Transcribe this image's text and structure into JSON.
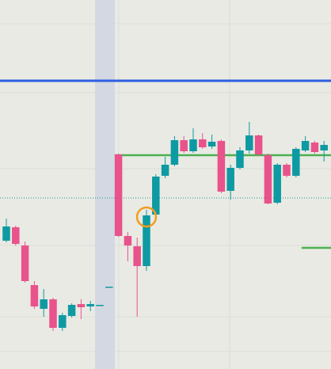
{
  "chart_data": {
    "type": "candlestick",
    "up_color": "#0e9aa2",
    "down_color": "#e8538b",
    "ylim": [
      0,
      466
    ],
    "categories": [
      null,
      null,
      null,
      null,
      null,
      null,
      null,
      null,
      null,
      null,
      null,
      null,
      null,
      null,
      null,
      null,
      null,
      null,
      null,
      null,
      null,
      null,
      null,
      null,
      null,
      null,
      null,
      null,
      null,
      null,
      null,
      null,
      null,
      null,
      null
    ],
    "open": [
      162,
      179,
      156,
      106,
      76,
      88,
      52,
      67,
      82,
      79,
      81,
      104,
      271,
      168,
      155,
      130,
      195,
      244,
      258,
      289,
      275,
      290,
      281,
      288,
      225,
      254,
      276,
      295,
      270,
      210,
      258,
      244,
      276,
      286,
      276
    ],
    "high": [
      190,
      181,
      161,
      111,
      101,
      90,
      71,
      83,
      88,
      86,
      81,
      104,
      272,
      173,
      166,
      201,
      246,
      268,
      294,
      294,
      304,
      298,
      296,
      290,
      258,
      280,
      312,
      296,
      272,
      260,
      260,
      280,
      294,
      288,
      288
    ],
    "low": [
      160,
      156,
      109,
      76,
      66,
      48,
      48,
      65,
      63,
      73,
      81,
      104,
      167,
      136,
      66,
      124,
      192,
      241,
      256,
      273,
      273,
      278,
      278,
      222,
      214,
      252,
      272,
      269,
      208,
      208,
      242,
      242,
      274,
      272,
      262
    ],
    "close": [
      180,
      158,
      111,
      79,
      88,
      52,
      68,
      81,
      78,
      82,
      81,
      104,
      168,
      156,
      130,
      194,
      243,
      258,
      289,
      275,
      290,
      280,
      287,
      224,
      254,
      276,
      295,
      271,
      209,
      258,
      244,
      278,
      288,
      274,
      283
    ],
    "levels": [
      {
        "value": 364,
        "color": "#2f5fe0",
        "style": "solid"
      },
      {
        "value": 270,
        "color": "#4caf50",
        "style": "solid",
        "from": 12
      },
      {
        "value": 216,
        "color": "#1a9a8e",
        "style": "dotted"
      },
      {
        "value": 153,
        "color": "#4caf50",
        "style": "solid",
        "from": 32
      }
    ],
    "marker": {
      "index": 15,
      "value": 192,
      "color": "#f39c1f"
    }
  }
}
